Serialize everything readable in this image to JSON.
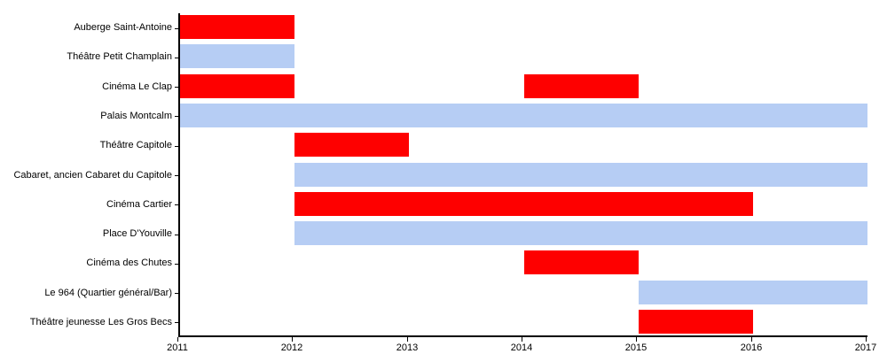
{
  "chart_data": {
    "type": "bar",
    "orientation": "horizontal",
    "title": "",
    "xlabel": "",
    "ylabel": "",
    "xlim": [
      2011,
      2017
    ],
    "x_ticks": [
      "2011",
      "2012",
      "2013",
      "2014",
      "2015",
      "2016",
      "2017"
    ],
    "grid": false,
    "legend": "none",
    "colors": {
      "red": "#fe0000",
      "blue": "#b6cdf4"
    },
    "rows": [
      {
        "label": "Auberge Saint-Antoine",
        "bars": [
          {
            "start": 2011,
            "end": 2012,
            "color": "red"
          }
        ]
      },
      {
        "label": "Théâtre Petit Champlain",
        "bars": [
          {
            "start": 2011,
            "end": 2012,
            "color": "blue"
          }
        ]
      },
      {
        "label": "Cinéma Le Clap",
        "bars": [
          {
            "start": 2011,
            "end": 2012,
            "color": "red"
          },
          {
            "start": 2014,
            "end": 2015,
            "color": "red"
          }
        ]
      },
      {
        "label": "Palais Montcalm",
        "bars": [
          {
            "start": 2011,
            "end": 2017,
            "color": "blue"
          }
        ]
      },
      {
        "label": "Théâtre Capitole",
        "bars": [
          {
            "start": 2012,
            "end": 2013,
            "color": "red"
          }
        ]
      },
      {
        "label": "Cabaret, ancien Cabaret du Capitole",
        "bars": [
          {
            "start": 2012,
            "end": 2017,
            "color": "blue"
          }
        ]
      },
      {
        "label": "Cinéma Cartier",
        "bars": [
          {
            "start": 2012,
            "end": 2016,
            "color": "red"
          }
        ]
      },
      {
        "label": "Place D'Youville",
        "bars": [
          {
            "start": 2012,
            "end": 2017,
            "color": "blue"
          }
        ]
      },
      {
        "label": "Cinéma des Chutes",
        "bars": [
          {
            "start": 2014,
            "end": 2015,
            "color": "red"
          }
        ]
      },
      {
        "label": "Le 964 (Quartier général/Bar)",
        "bars": [
          {
            "start": 2015,
            "end": 2017,
            "color": "blue"
          }
        ]
      },
      {
        "label": "Théâtre jeunesse Les Gros Becs",
        "bars": [
          {
            "start": 2015,
            "end": 2016,
            "color": "red"
          }
        ]
      }
    ]
  }
}
